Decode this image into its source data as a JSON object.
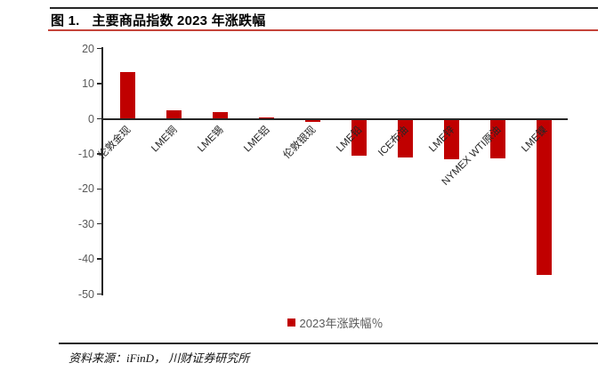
{
  "figure": {
    "title_prefix": "图 1.",
    "title_text": "主要商品指数 2023 年涨跌幅",
    "source": "资料来源：iFinD， 川财证券研究所"
  },
  "legend": {
    "label": "2023年涨跌幅％"
  },
  "colors": {
    "bar": "#c00000",
    "title_underline": "#c5443a",
    "axis": "#262626",
    "tick_text": "#595959"
  },
  "chart_data": {
    "type": "bar",
    "title": "主要商品指数 2023 年涨跌幅",
    "categories": [
      "伦敦金现",
      "LME铜",
      "LME锡",
      "LME铝",
      "伦敦银现",
      "LME铅",
      "ICE布油",
      "LME锌",
      "NYMEX WTI原油",
      "LME镍"
    ],
    "values": [
      13.2,
      2.5,
      2.0,
      0.4,
      -0.7,
      -10.2,
      -10.8,
      -11.2,
      -11.1,
      -44.4
    ],
    "series_name": "2023年涨跌幅％",
    "xlabel": "",
    "ylabel": "",
    "ylim": [
      -50,
      20
    ],
    "yticks": [
      20,
      10,
      0,
      -10,
      -20,
      -30,
      -40,
      -50
    ],
    "grid": false,
    "legend_position": "bottom-center",
    "bar_color": "#c00000",
    "category_label_rotation_deg": 45
  }
}
